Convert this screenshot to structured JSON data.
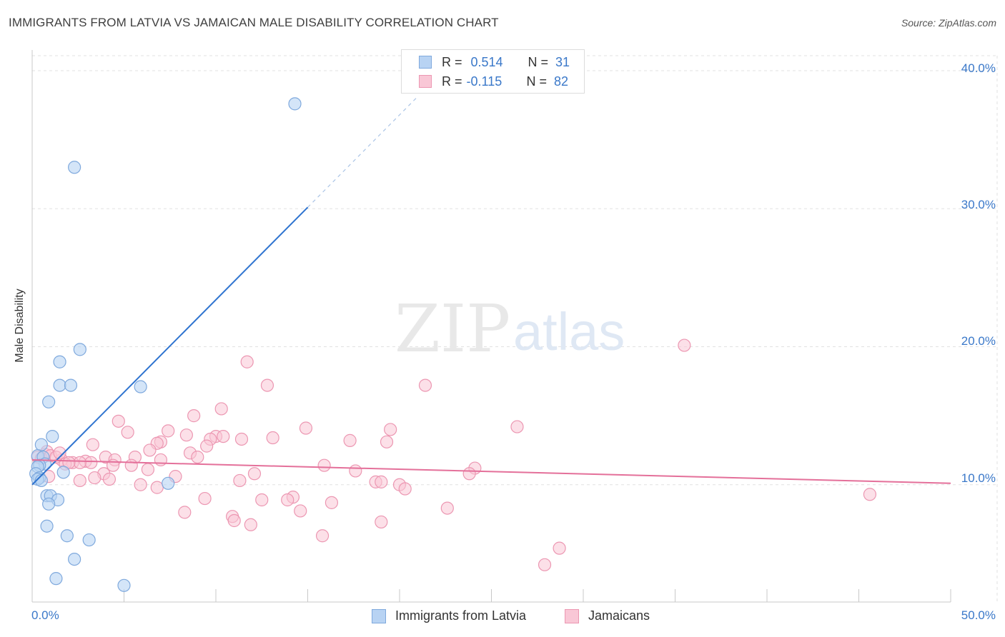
{
  "header": {
    "title": "IMMIGRANTS FROM LATVIA VS JAMAICAN MALE DISABILITY CORRELATION CHART",
    "source": "Source: ZipAtlas.com"
  },
  "watermark": {
    "zip": "ZIP",
    "atlas": "atlas"
  },
  "legend_top": {
    "r_label": "R =",
    "n_label": "N =",
    "rows": [
      {
        "r": "0.514",
        "n": "31",
        "color": "#9ec3ee"
      },
      {
        "r": "-0.115",
        "n": "82",
        "color": "#f5b8cb"
      }
    ]
  },
  "colors": {
    "blue_fill": "#b8d3f3",
    "blue_stroke": "#7fa9dd",
    "blue_line": "#2f74d0",
    "pink_fill": "#f9c7d6",
    "pink_stroke": "#ec97b2",
    "pink_line": "#e4709a",
    "tick_text": "#3a78c9",
    "grid": "#e2e2e2"
  },
  "chart_data": {
    "type": "scatter",
    "title": "IMMIGRANTS FROM LATVIA VS JAMAICAN MALE DISABILITY CORRELATION CHART",
    "xlabel": "",
    "ylabel": "Male Disability",
    "xlim": [
      0,
      50
    ],
    "ylim": [
      1.5,
      41.5
    ],
    "x_tick_labels": [
      "0.0%",
      "50.0%"
    ],
    "y_ticks": [
      10,
      20,
      30,
      40
    ],
    "y_tick_labels": [
      "10.0%",
      "20.0%",
      "30.0%",
      "40.0%"
    ],
    "grid": true,
    "legend_position": "bottom",
    "series": [
      {
        "name": "Immigrants from Latvia",
        "r": 0.514,
        "n": 31,
        "trend": {
          "x0": 0,
          "y0": 10.0,
          "x1": 15,
          "y1": 30.1,
          "dash_to_x": 21
        },
        "points": [
          [
            14.3,
            37.6
          ],
          [
            2.3,
            33.0
          ],
          [
            2.6,
            19.8
          ],
          [
            1.5,
            18.9
          ],
          [
            1.5,
            17.2
          ],
          [
            2.1,
            17.2
          ],
          [
            5.9,
            17.1
          ],
          [
            0.9,
            16.0
          ],
          [
            1.1,
            13.5
          ],
          [
            0.5,
            12.9
          ],
          [
            0.3,
            12.1
          ],
          [
            0.6,
            12.0
          ],
          [
            0.7,
            11.5
          ],
          [
            0.4,
            11.4
          ],
          [
            0.3,
            11.3
          ],
          [
            0.2,
            10.8
          ],
          [
            0.4,
            10.5
          ],
          [
            0.3,
            10.4
          ],
          [
            1.7,
            10.9
          ],
          [
            0.5,
            10.3
          ],
          [
            7.4,
            10.1
          ],
          [
            0.8,
            9.2
          ],
          [
            1.0,
            9.2
          ],
          [
            1.4,
            8.9
          ],
          [
            0.9,
            8.6
          ],
          [
            0.8,
            7.0
          ],
          [
            1.9,
            6.3
          ],
          [
            3.1,
            6.0
          ],
          [
            2.3,
            4.6
          ],
          [
            1.3,
            3.2
          ],
          [
            5.0,
            2.7
          ]
        ]
      },
      {
        "name": "Jamaicans",
        "r": -0.115,
        "n": 82,
        "trend": {
          "x0": 0,
          "y0": 11.8,
          "x1": 50,
          "y1": 10.1
        },
        "points": [
          [
            35.5,
            20.1
          ],
          [
            11.7,
            18.9
          ],
          [
            12.8,
            17.2
          ],
          [
            21.4,
            17.2
          ],
          [
            10.3,
            15.5
          ],
          [
            8.8,
            15.0
          ],
          [
            4.7,
            14.6
          ],
          [
            14.9,
            14.1
          ],
          [
            19.5,
            14.0
          ],
          [
            26.4,
            14.2
          ],
          [
            5.2,
            13.8
          ],
          [
            7.4,
            13.9
          ],
          [
            8.4,
            13.6
          ],
          [
            10.0,
            13.5
          ],
          [
            13.1,
            13.4
          ],
          [
            17.3,
            13.2
          ],
          [
            19.3,
            13.1
          ],
          [
            9.7,
            13.3
          ],
          [
            11.4,
            13.3
          ],
          [
            10.4,
            13.5
          ],
          [
            7.0,
            13.1
          ],
          [
            3.3,
            12.9
          ],
          [
            6.8,
            13.0
          ],
          [
            9.5,
            12.8
          ],
          [
            6.4,
            12.5
          ],
          [
            8.6,
            12.3
          ],
          [
            4.0,
            12.0
          ],
          [
            5.6,
            12.0
          ],
          [
            9.0,
            12.0
          ],
          [
            7.0,
            11.8
          ],
          [
            4.5,
            11.8
          ],
          [
            2.9,
            11.7
          ],
          [
            3.2,
            11.6
          ],
          [
            5.4,
            11.4
          ],
          [
            2.2,
            11.6
          ],
          [
            2.6,
            11.6
          ],
          [
            1.6,
            11.8
          ],
          [
            0.7,
            12.2
          ],
          [
            0.8,
            12.4
          ],
          [
            0.3,
            12.0
          ],
          [
            0.5,
            11.9
          ],
          [
            1.0,
            12.1
          ],
          [
            1.3,
            12.0
          ],
          [
            1.8,
            11.5
          ],
          [
            2.0,
            11.6
          ],
          [
            4.4,
            11.4
          ],
          [
            6.3,
            11.1
          ],
          [
            15.9,
            11.4
          ],
          [
            17.6,
            11.0
          ],
          [
            24.1,
            11.2
          ],
          [
            23.8,
            10.8
          ],
          [
            12.1,
            10.8
          ],
          [
            3.9,
            10.8
          ],
          [
            3.4,
            10.5
          ],
          [
            7.8,
            10.6
          ],
          [
            4.2,
            10.4
          ],
          [
            2.6,
            10.3
          ],
          [
            5.9,
            10.0
          ],
          [
            6.8,
            9.8
          ],
          [
            11.3,
            10.3
          ],
          [
            18.7,
            10.2
          ],
          [
            19.0,
            10.2
          ],
          [
            20.0,
            10.0
          ],
          [
            20.3,
            9.7
          ],
          [
            14.2,
            9.1
          ],
          [
            9.4,
            9.0
          ],
          [
            12.5,
            8.9
          ],
          [
            13.9,
            8.9
          ],
          [
            16.3,
            8.7
          ],
          [
            22.6,
            8.3
          ],
          [
            14.6,
            8.1
          ],
          [
            8.3,
            8.0
          ],
          [
            10.9,
            7.7
          ],
          [
            11.0,
            7.4
          ],
          [
            11.9,
            7.1
          ],
          [
            19.0,
            7.3
          ],
          [
            15.8,
            6.3
          ],
          [
            28.7,
            5.4
          ],
          [
            27.9,
            4.2
          ],
          [
            45.6,
            9.3
          ],
          [
            0.9,
            10.6
          ],
          [
            1.5,
            12.3
          ]
        ]
      }
    ]
  },
  "bottom_legend": {
    "items": [
      "Immigrants from Latvia",
      "Jamaicans"
    ]
  }
}
